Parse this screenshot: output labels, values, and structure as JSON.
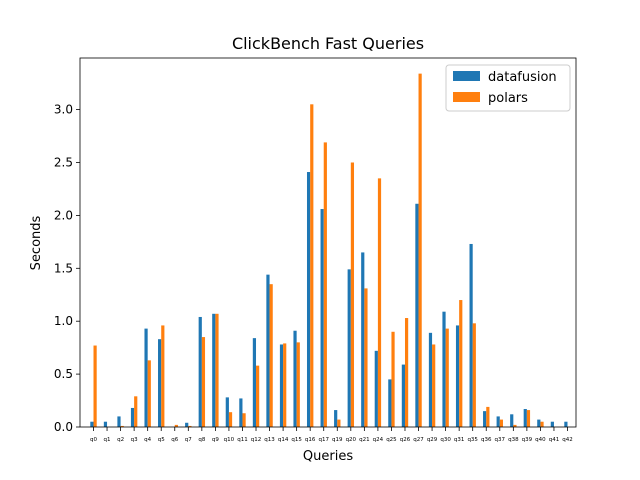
{
  "chart_data": {
    "type": "bar",
    "title": "ClickBench Fast Queries",
    "xlabel": "Queries",
    "ylabel": "Seconds",
    "ylim": [
      0,
      3.5
    ],
    "yticks": [
      0.0,
      0.5,
      1.0,
      1.5,
      2.0,
      2.5,
      3.0
    ],
    "ytick_labels": [
      "0.0",
      "0.5",
      "1.0",
      "1.5",
      "2.0",
      "2.5",
      "3.0"
    ],
    "legend_position": "top-right",
    "categories": [
      "q0",
      "q1",
      "q2",
      "q3",
      "q4",
      "q5",
      "q6",
      "q7",
      "q8",
      "q9",
      "q10",
      "q11",
      "q12",
      "q13",
      "q14",
      "q15",
      "q16",
      "q17",
      "q19",
      "q20",
      "q21",
      "q24",
      "q25",
      "q26",
      "q27",
      "q29",
      "q30",
      "q31",
      "q35",
      "q36",
      "q37",
      "q38",
      "q39",
      "q40",
      "q41",
      "q42"
    ],
    "series": [
      {
        "name": "datafusion",
        "color": "#1f77b4",
        "values": [
          0.05,
          0.05,
          0.1,
          0.18,
          0.93,
          0.83,
          0.0,
          0.04,
          1.04,
          1.07,
          0.28,
          0.27,
          0.84,
          1.44,
          0.78,
          0.91,
          2.41,
          2.06,
          0.16,
          1.49,
          1.65,
          0.72,
          0.45,
          0.59,
          2.11,
          0.89,
          1.09,
          0.96,
          1.73,
          0.15,
          0.1,
          0.12,
          0.17,
          0.07,
          0.05,
          0.05
        ]
      },
      {
        "name": "polars",
        "color": "#ff7f0e",
        "values": [
          0.77,
          0.0,
          0.01,
          0.29,
          0.63,
          0.96,
          0.02,
          0.01,
          0.85,
          1.07,
          0.14,
          0.13,
          0.58,
          1.35,
          0.79,
          0.8,
          3.05,
          2.69,
          0.07,
          2.5,
          1.31,
          2.35,
          0.9,
          1.03,
          3.34,
          0.78,
          0.93,
          1.2,
          0.98,
          0.19,
          0.07,
          0.02,
          0.16,
          0.05,
          0.0,
          0.0
        ]
      }
    ]
  }
}
